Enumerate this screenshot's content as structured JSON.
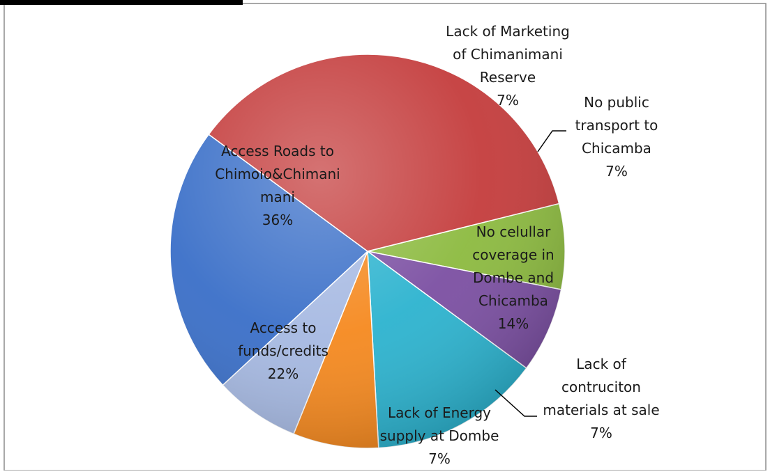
{
  "chart_data": {
    "type": "pie",
    "title": "",
    "legend": "none",
    "categories": [
      "Lack of Marketing of Chimanimani Reserve",
      "No public transport to Chicamba",
      "No celullar coverage in Dombe and Chicamba",
      "Lack of contruciton materials at sale",
      "Lack of Energy supply at Dombe",
      "Access to funds/credits",
      "Access Roads to Chimoio&Chimanimani"
    ],
    "values": [
      7,
      7,
      14,
      7,
      7,
      22,
      36
    ],
    "colors": [
      "#8cba3f",
      "#7b4fa2",
      "#2cb3cf",
      "#f5891f",
      "#a6b9e2",
      "#3a6fc8",
      "#c43c3c"
    ],
    "slices": [
      {
        "label_lines": [
          "Lack of Marketing",
          "of Chimanimani",
          "Reserve"
        ],
        "pct": "7%"
      },
      {
        "label_lines": [
          "No public",
          "transport to",
          "Chicamba"
        ],
        "pct": "7%"
      },
      {
        "label_lines": [
          "No celullar",
          "coverage in",
          "Dombe and",
          "Chicamba"
        ],
        "pct": "14%"
      },
      {
        "label_lines": [
          "Lack of",
          "contruciton",
          "materials at sale"
        ],
        "pct": "7%"
      },
      {
        "label_lines": [
          "Lack of Energy",
          "supply at Dombe"
        ],
        "pct": "7%"
      },
      {
        "label_lines": [
          "Access to",
          "funds/credits"
        ],
        "pct": "22%"
      },
      {
        "label_lines": [
          "Access Roads to",
          "Chimoio&Chimani",
          "mani"
        ],
        "pct": "36%"
      }
    ]
  }
}
